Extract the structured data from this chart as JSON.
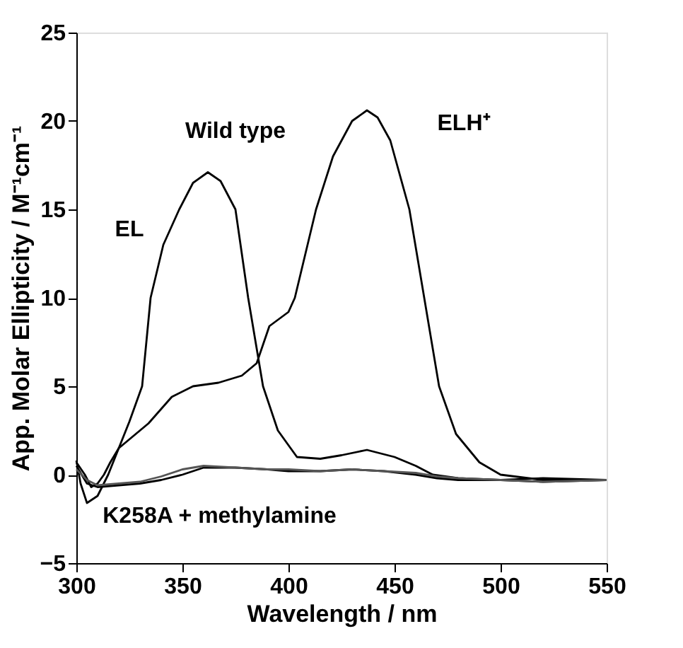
{
  "chart_data": {
    "type": "line",
    "xlabel": "Wavelength / nm",
    "ylabel": "App. Molar Ellipticity / M⁻¹cm⁻¹",
    "xlim": [
      300,
      550
    ],
    "xticks": [
      300,
      350,
      400,
      450,
      500,
      550
    ],
    "ylim": [
      -5,
      25
    ],
    "yticks": [
      -5,
      0,
      5,
      10,
      15,
      20,
      25
    ],
    "grid": false,
    "legend": false,
    "line_style": "solid",
    "marker": "none",
    "series": [
      {
        "color": "#000000",
        "x": [
          300,
          304,
          307,
          310,
          313,
          316,
          320,
          325,
          331,
          335,
          341,
          348.5,
          355,
          362,
          368,
          375,
          381,
          388,
          395,
          404,
          415,
          425,
          437,
          450,
          460,
          468,
          480,
          500,
          520,
          550
        ],
        "values": [
          0.7,
          0,
          -0.7,
          -0.5,
          0,
          0.7,
          1.5,
          3,
          5,
          10,
          13,
          15,
          16.5,
          17.1,
          16.6,
          15,
          10,
          5,
          2.5,
          1,
          0.9,
          1.1,
          1.4,
          1,
          0.5,
          0,
          -0.2,
          -0.3,
          -0.2,
          -0.3
        ]
      },
      {
        "color": "#000000",
        "x": [
          300,
          302,
          305,
          310,
          315,
          320,
          334,
          345,
          355,
          367,
          378,
          385,
          391,
          400,
          403,
          408,
          413,
          421,
          430,
          437,
          442,
          448,
          457,
          464,
          471,
          479,
          490,
          500,
          520,
          550
        ],
        "values": [
          0.8,
          -0.5,
          -1.6,
          -1.2,
          0,
          1.5,
          2.9,
          4.4,
          5,
          5.2,
          5.6,
          6.3,
          8.4,
          9.2,
          10,
          12.5,
          15,
          18,
          20,
          20.6,
          20.2,
          18.9,
          15,
          10,
          5,
          2.3,
          0.7,
          0,
          -0.3,
          -0.3
        ]
      },
      {
        "color": "#000000",
        "x": [
          300,
          305,
          310,
          320,
          330,
          340,
          350,
          360,
          375,
          390,
          400,
          415,
          430,
          445,
          460,
          470,
          480,
          500,
          520,
          550
        ],
        "values": [
          0.5,
          -0.5,
          -0.7,
          -0.6,
          -0.5,
          -0.3,
          0,
          0.4,
          0.4,
          0.3,
          0.2,
          0.2,
          0.3,
          0.2,
          0,
          -0.2,
          -0.3,
          -0.3,
          -0.4,
          -0.3
        ]
      },
      {
        "color": "#555555",
        "x": [
          300,
          305,
          310,
          320,
          330,
          340,
          350,
          360,
          375,
          390,
          400,
          415,
          430,
          445,
          460,
          470,
          480,
          500,
          520,
          550
        ],
        "values": [
          0.3,
          -0.3,
          -0.6,
          -0.5,
          -0.4,
          -0.1,
          0.3,
          0.5,
          0.4,
          0.3,
          0.3,
          0.2,
          0.3,
          0.2,
          0.1,
          -0.1,
          -0.2,
          -0.3,
          -0.4,
          -0.3
        ]
      }
    ],
    "annotations": [
      "Wild type",
      "EL",
      "ELH⁺",
      "K258A + methylamine"
    ]
  }
}
